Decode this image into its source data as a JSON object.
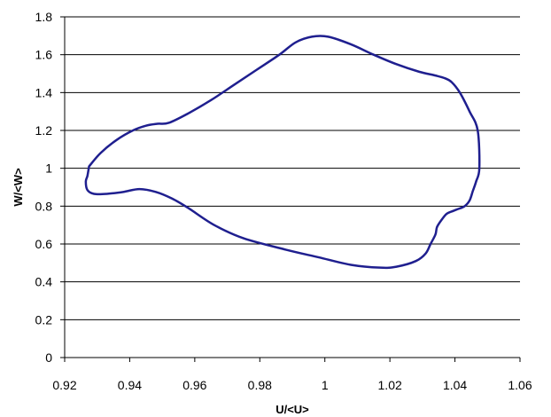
{
  "chart_data": {
    "type": "line",
    "title": "",
    "xlabel": "U/<U>",
    "ylabel": "W/<W>",
    "xlim": [
      0.92,
      1.06
    ],
    "ylim": [
      0,
      1.8
    ],
    "x_ticks": [
      "0.92",
      "0.94",
      "0.96",
      "0.98",
      "1",
      "1.02",
      "1.04",
      "1.06"
    ],
    "y_ticks": [
      "0",
      "0.2",
      "0.4",
      "0.6",
      "0.8",
      "1",
      "1.2",
      "1.4",
      "1.6",
      "1.8"
    ],
    "grid": "horizontal",
    "legend": "none",
    "series_color": "#1f1f8f",
    "grid_color": "#000000",
    "series": [
      {
        "closed": true,
        "x": [
          0.9275,
          0.931,
          0.936,
          0.941,
          0.945,
          0.9485,
          0.952,
          0.958,
          0.965,
          0.972,
          0.979,
          0.986,
          0.991,
          0.996,
          1.001,
          1.008,
          1.015,
          1.022,
          1.029,
          1.034,
          1.037,
          1.039,
          1.0415,
          1.0445,
          1.047,
          1.0475,
          1.0465,
          1.0455,
          1.0445,
          1.043,
          1.041,
          1.0395,
          1.0375,
          1.036,
          1.0345,
          1.034,
          1.0325,
          1.031,
          1.028,
          1.022,
          1.017,
          1.008,
          0.998,
          0.988,
          0.975,
          0.966,
          0.958,
          0.953,
          0.948,
          0.943,
          0.938,
          0.933,
          0.929,
          0.927,
          0.9265,
          0.927,
          0.9275
        ],
        "y": [
          1.01,
          1.08,
          1.15,
          1.2,
          1.225,
          1.235,
          1.24,
          1.29,
          1.36,
          1.44,
          1.52,
          1.6,
          1.665,
          1.695,
          1.695,
          1.655,
          1.6,
          1.55,
          1.51,
          1.49,
          1.475,
          1.455,
          1.4,
          1.3,
          1.2,
          1.0,
          0.93,
          0.88,
          0.83,
          0.8,
          0.785,
          0.775,
          0.76,
          0.73,
          0.69,
          0.65,
          0.6,
          0.55,
          0.51,
          0.48,
          0.475,
          0.49,
          0.53,
          0.57,
          0.63,
          0.7,
          0.79,
          0.84,
          0.875,
          0.89,
          0.875,
          0.865,
          0.865,
          0.885,
          0.93,
          0.96,
          1.01
        ]
      }
    ]
  }
}
